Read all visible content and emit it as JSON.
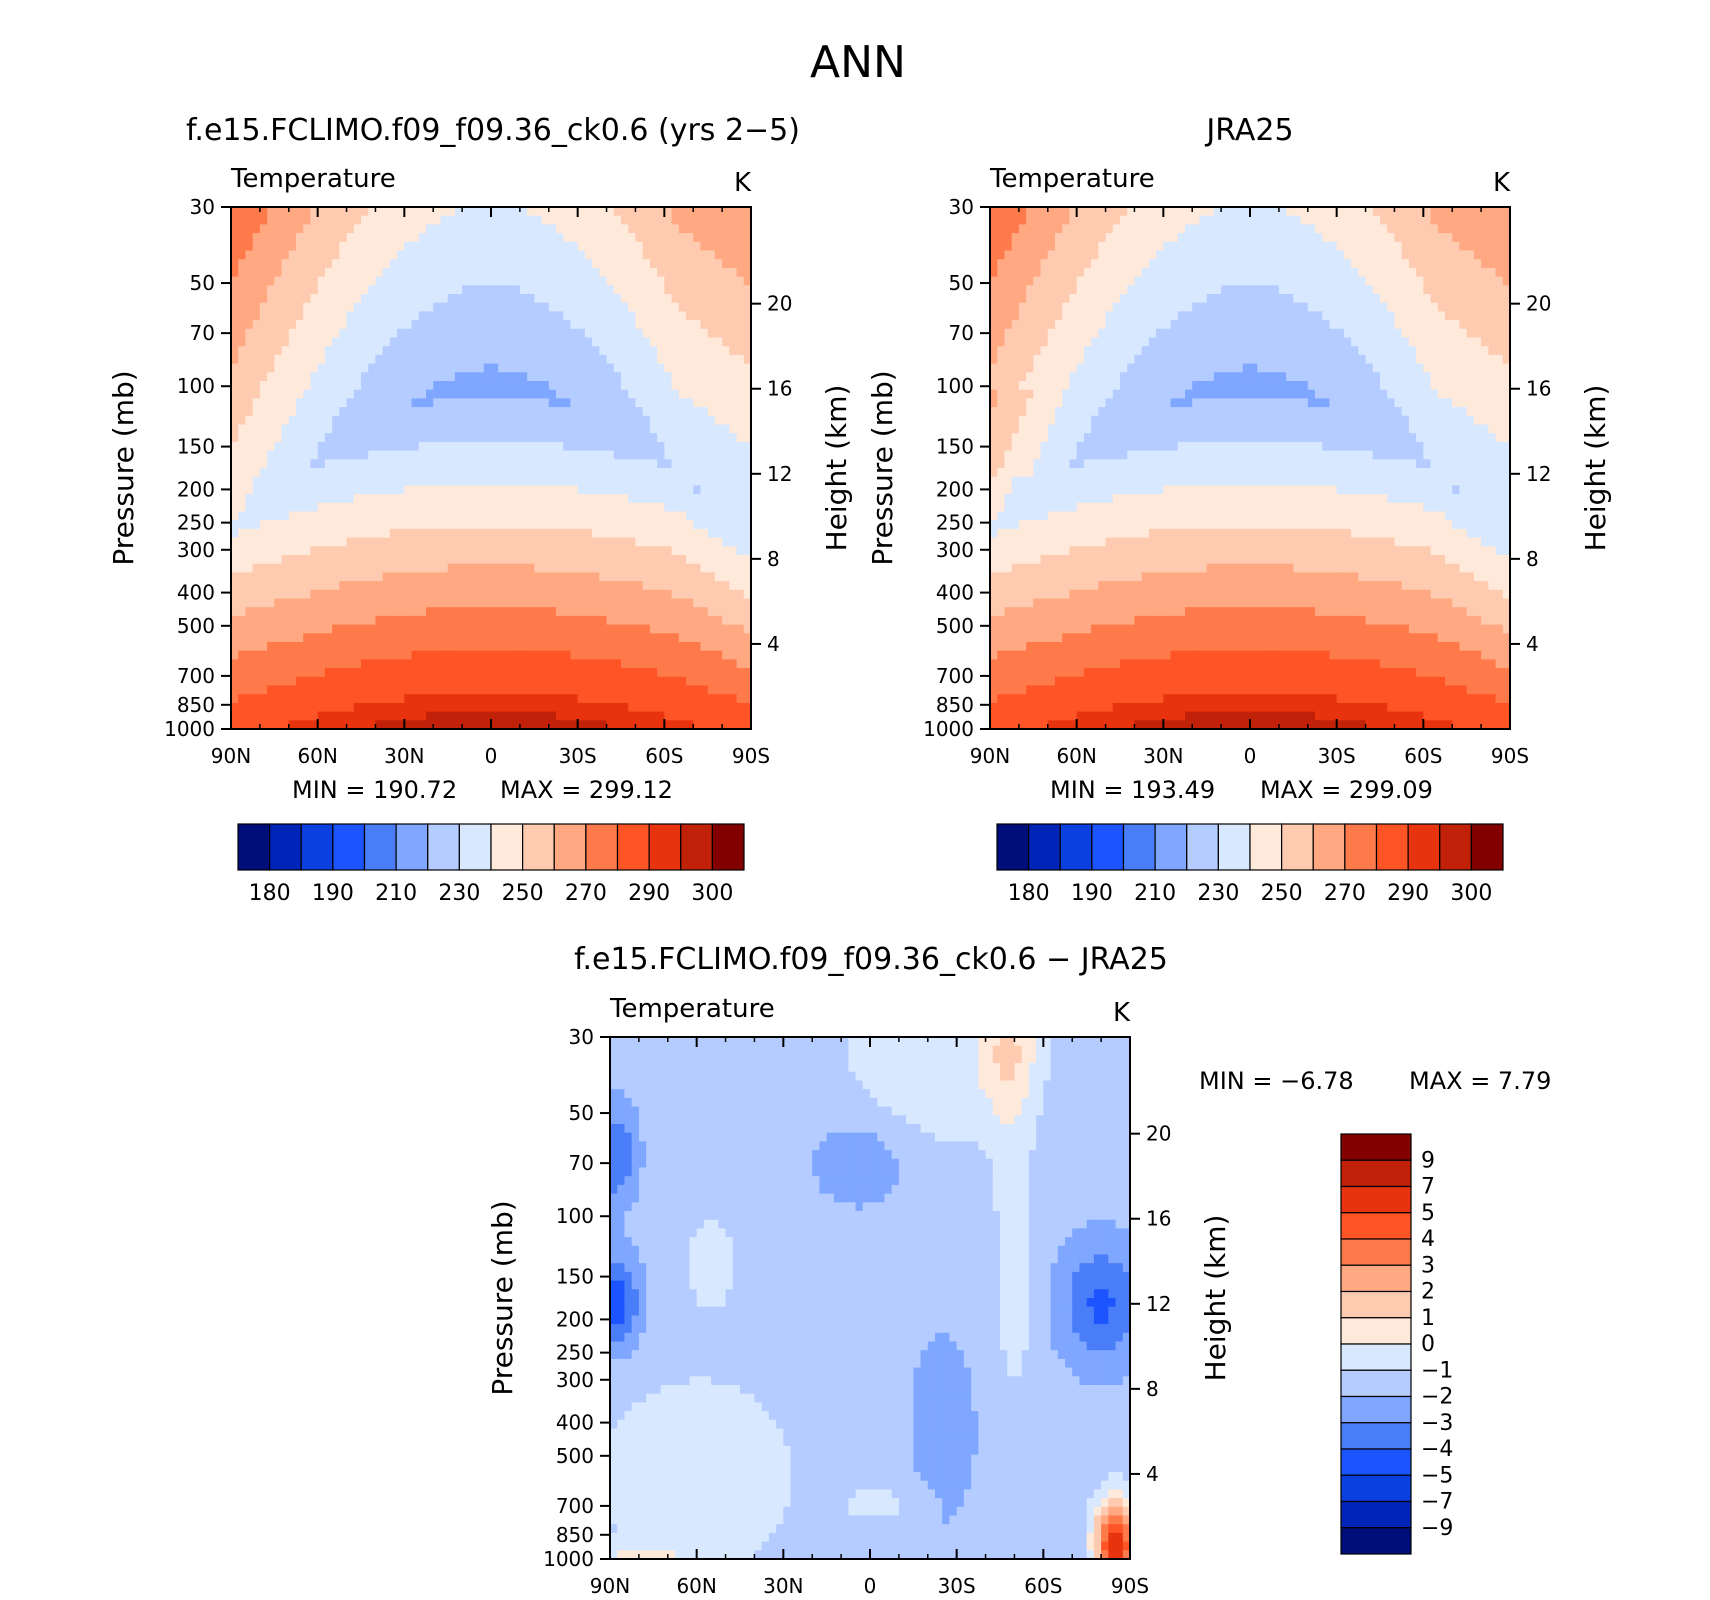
{
  "page_title": "ANN",
  "colors": {
    "abs": [
      "#000e7a",
      "#0023b8",
      "#0a3fe0",
      "#1c55ff",
      "#4a7ef8",
      "#7fa7ff",
      "#b4ccff",
      "#d8e8ff",
      "#ffe9da",
      "#ffcbb0",
      "#ffa882",
      "#ff7a4b",
      "#ff5426",
      "#e8340e",
      "#c02108",
      "#820000"
    ],
    "diff": [
      "#000e7a",
      "#0023b8",
      "#0a3fe0",
      "#1c55ff",
      "#4a7ef8",
      "#7fa7ff",
      "#b4ccff",
      "#d8e8ff",
      "#ffe9da",
      "#ffcbb0",
      "#ffa882",
      "#ff7a4b",
      "#ff5426",
      "#e8340e",
      "#c02108",
      "#820000"
    ]
  },
  "chart_data": [
    {
      "type": "heatmap",
      "panel": "model",
      "title": "f.e15.FCLIMO.f09_f09.36_ck0.6 (yrs 2−5)",
      "left_label": "Temperature",
      "units": "K",
      "xlabel": "",
      "ylabel": "Pressure (mb)",
      "ylabel_right": "Height (km)",
      "x_ticks": [
        "90N",
        "60N",
        "30N",
        "0",
        "30S",
        "60S",
        "90S"
      ],
      "x_values": [
        90,
        60,
        30,
        0,
        -30,
        -60,
        -90
      ],
      "y_ticks": [
        30,
        50,
        70,
        100,
        150,
        200,
        250,
        300,
        400,
        500,
        700,
        850,
        1000
      ],
      "ylim": [
        30,
        1000
      ],
      "y_scale": "log",
      "height_ticks": [
        4,
        8,
        12,
        16,
        20
      ],
      "min_label": "MIN = 190.72",
      "max_label": "MAX = 299.12",
      "min": 190.72,
      "max": 299.12,
      "colorbar_labels": [
        "180",
        "190",
        "210",
        "230",
        "250",
        "270",
        "290",
        "300"
      ]
    },
    {
      "type": "heatmap",
      "panel": "obs",
      "title": "JRA25",
      "left_label": "Temperature",
      "units": "K",
      "xlabel": "",
      "ylabel": "Pressure (mb)",
      "ylabel_right": "Height (km)",
      "x_ticks": [
        "90N",
        "60N",
        "30N",
        "0",
        "30S",
        "60S",
        "90S"
      ],
      "x_values": [
        90,
        60,
        30,
        0,
        -30,
        -60,
        -90
      ],
      "y_ticks": [
        30,
        50,
        70,
        100,
        150,
        200,
        250,
        300,
        400,
        500,
        700,
        850,
        1000
      ],
      "ylim": [
        30,
        1000
      ],
      "y_scale": "log",
      "height_ticks": [
        4,
        8,
        12,
        16,
        20
      ],
      "min_label": "MIN = 193.49",
      "max_label": "MAX = 299.09",
      "min": 193.49,
      "max": 299.09,
      "colorbar_labels": [
        "180",
        "190",
        "210",
        "230",
        "250",
        "270",
        "290",
        "300"
      ]
    },
    {
      "type": "heatmap",
      "panel": "difference",
      "title": "f.e15.FCLIMO.f09_f09.36_ck0.6 − JRA25",
      "left_label": "Temperature",
      "units": "K",
      "xlabel": "",
      "ylabel": "Pressure (mb)",
      "ylabel_right": "Height (km)",
      "x_ticks": [
        "90N",
        "60N",
        "30N",
        "0",
        "30S",
        "60S",
        "90S"
      ],
      "x_values": [
        90,
        60,
        30,
        0,
        -30,
        -60,
        -90
      ],
      "y_ticks": [
        30,
        50,
        70,
        100,
        150,
        200,
        250,
        300,
        400,
        500,
        700,
        850,
        1000
      ],
      "ylim": [
        30,
        1000
      ],
      "y_scale": "log",
      "height_ticks": [
        4,
        8,
        12,
        16,
        20
      ],
      "min_label": "MIN = −6.78",
      "max_label": "MAX = 7.79",
      "min": -6.78,
      "max": 7.79,
      "colorbar_labels": [
        "9",
        "7",
        "5",
        "4",
        "3",
        "2",
        "1",
        "0",
        "−1",
        "−2",
        "−3",
        "−4",
        "−5",
        "−7",
        "−9"
      ]
    }
  ]
}
